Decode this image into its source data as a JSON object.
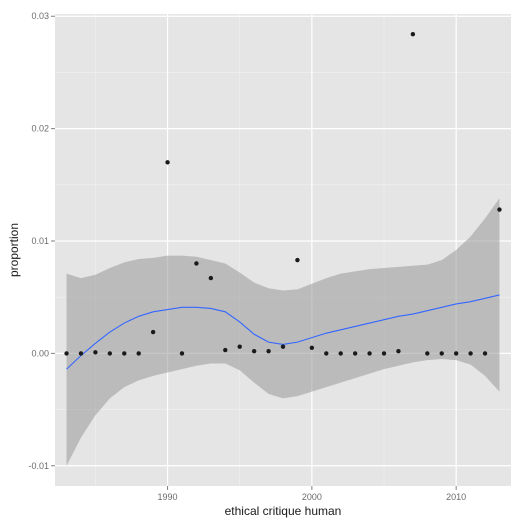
{
  "chart_data": {
    "type": "scatter",
    "title": "",
    "xlabel": "ethical critique human",
    "ylabel": "proportion",
    "xlim": [
      1982.2,
      2013.8
    ],
    "ylim": [
      -0.0118,
      0.0302
    ],
    "x_ticks": [
      1990,
      2000,
      2010
    ],
    "x_tick_labels": [
      "1990",
      "2000",
      "2010"
    ],
    "y_ticks": [
      -0.01,
      0.0,
      0.01,
      0.02,
      0.03
    ],
    "y_tick_labels": [
      "-0.01",
      "0.00",
      "0.01",
      "0.02",
      "0.03"
    ],
    "grid": true,
    "colors": {
      "panel_background": "#e5e5e5",
      "grid_major": "#ffffff",
      "grid_minor": "#f2f2f2",
      "points": "#1a1a1a",
      "smooth_line": "#3366ff",
      "confidence_band": "#999999",
      "tick_label": "#6b6b6b",
      "axis_title": "#1a1a1a"
    },
    "points": [
      {
        "x": 1983,
        "y": 0.0
      },
      {
        "x": 1984,
        "y": 0.0
      },
      {
        "x": 1985,
        "y": 0.0001
      },
      {
        "x": 1986,
        "y": 0.0
      },
      {
        "x": 1987,
        "y": 0.0
      },
      {
        "x": 1988,
        "y": 0.0
      },
      {
        "x": 1989,
        "y": 0.0019
      },
      {
        "x": 1990,
        "y": 0.017
      },
      {
        "x": 1991,
        "y": 0.0
      },
      {
        "x": 1992,
        "y": 0.008
      },
      {
        "x": 1993,
        "y": 0.0067
      },
      {
        "x": 1994,
        "y": 0.0003
      },
      {
        "x": 1995,
        "y": 0.0006
      },
      {
        "x": 1996,
        "y": 0.0002
      },
      {
        "x": 1997,
        "y": 0.0002
      },
      {
        "x": 1998,
        "y": 0.0006
      },
      {
        "x": 1999,
        "y": 0.0083
      },
      {
        "x": 2000,
        "y": 0.0005
      },
      {
        "x": 2001,
        "y": 0.0
      },
      {
        "x": 2002,
        "y": 0.0
      },
      {
        "x": 2003,
        "y": 0.0
      },
      {
        "x": 2004,
        "y": 0.0
      },
      {
        "x": 2005,
        "y": 0.0
      },
      {
        "x": 2006,
        "y": 0.0002
      },
      {
        "x": 2007,
        "y": 0.0284
      },
      {
        "x": 2008,
        "y": 0.0
      },
      {
        "x": 2009,
        "y": 0.0
      },
      {
        "x": 2010,
        "y": 0.0
      },
      {
        "x": 2011,
        "y": 0.0
      },
      {
        "x": 2012,
        "y": 0.0
      },
      {
        "x": 2013,
        "y": 0.0128
      }
    ],
    "smooth": {
      "x": [
        1983,
        1984,
        1985,
        1986,
        1987,
        1988,
        1989,
        1990,
        1991,
        1992,
        1993,
        1994,
        1995,
        1996,
        1997,
        1998,
        1999,
        2000,
        2001,
        2002,
        2003,
        2004,
        2005,
        2006,
        2007,
        2008,
        2009,
        2010,
        2011,
        2012,
        2013
      ],
      "y": [
        -0.0014,
        -0.0002,
        0.0009,
        0.0019,
        0.0027,
        0.0033,
        0.0037,
        0.0039,
        0.0041,
        0.0041,
        0.004,
        0.0037,
        0.0028,
        0.0017,
        0.001,
        0.0008,
        0.001,
        0.0014,
        0.0018,
        0.0021,
        0.0024,
        0.0027,
        0.003,
        0.0033,
        0.0035,
        0.0038,
        0.0041,
        0.0044,
        0.0046,
        0.0049,
        0.0052
      ],
      "lower": [
        -0.01,
        -0.0075,
        -0.0055,
        -0.004,
        -0.003,
        -0.0024,
        -0.002,
        -0.0017,
        -0.0014,
        -0.0011,
        -0.0009,
        -0.0009,
        -0.0015,
        -0.0026,
        -0.0036,
        -0.004,
        -0.0038,
        -0.0034,
        -0.003,
        -0.0026,
        -0.0022,
        -0.0018,
        -0.0014,
        -0.0011,
        -0.0008,
        -0.0006,
        -0.0005,
        -0.0006,
        -0.001,
        -0.002,
        -0.0034
      ],
      "upper": [
        0.0071,
        0.0067,
        0.007,
        0.0076,
        0.0081,
        0.0084,
        0.0085,
        0.0087,
        0.0087,
        0.0086,
        0.0083,
        0.008,
        0.0072,
        0.0063,
        0.0058,
        0.0056,
        0.0057,
        0.0062,
        0.0067,
        0.0071,
        0.0073,
        0.0075,
        0.0076,
        0.0077,
        0.0078,
        0.0079,
        0.0083,
        0.0092,
        0.0104,
        0.012,
        0.0138
      ]
    }
  }
}
